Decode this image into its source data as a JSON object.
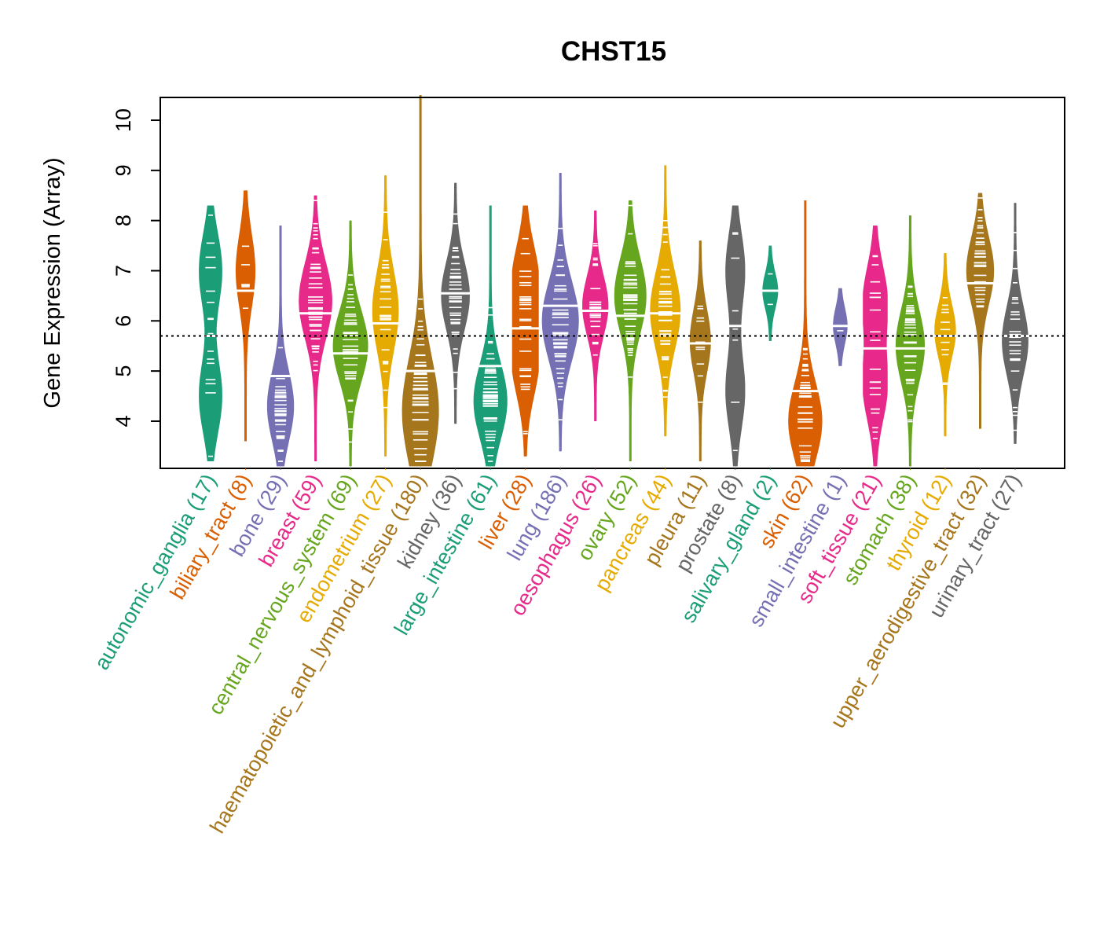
{
  "chart_data": {
    "type": "violin",
    "title": "CHST15",
    "xlabel": "",
    "ylabel": "Gene Expression (Array)",
    "ylim": [
      3.1,
      10.5
    ],
    "yticks": [
      4,
      5,
      6,
      7,
      8,
      9,
      10
    ],
    "reference_line": {
      "value": 5.7,
      "style": "dotted",
      "color": "#000000"
    },
    "grid": false,
    "legend": "none",
    "categories": [
      {
        "name": "autonomic_ganglia",
        "n": 17,
        "label": "autonomic_ganglia (17)",
        "color": "#1B9E77",
        "min": 3.2,
        "max": 8.3,
        "median": 5.7,
        "modes": [
          7.0,
          4.5
        ]
      },
      {
        "name": "biliary_tract",
        "n": 8,
        "label": "biliary_tract (8)",
        "color": "#D95F02",
        "min": 3.6,
        "max": 8.6,
        "median": 6.6,
        "modes": [
          7.0
        ]
      },
      {
        "name": "bone",
        "n": 29,
        "label": "bone (29)",
        "color": "#7570B3",
        "min": 3.1,
        "max": 7.9,
        "median": 4.9,
        "modes": [
          4.3
        ]
      },
      {
        "name": "breast",
        "n": 59,
        "label": "breast (59)",
        "color": "#E7298A",
        "min": 3.2,
        "max": 8.5,
        "median": 6.15,
        "modes": [
          6.4
        ]
      },
      {
        "name": "central_nervous_system",
        "n": 69,
        "label": "central_nervous_system (69)",
        "color": "#66A61E",
        "min": 3.0,
        "max": 8.0,
        "median": 5.35,
        "modes": [
          5.5
        ]
      },
      {
        "name": "endometrium",
        "n": 27,
        "label": "endometrium (27)",
        "color": "#E6AB02",
        "min": 3.3,
        "max": 8.9,
        "median": 5.95,
        "modes": [
          6.2
        ]
      },
      {
        "name": "haematopoietic_and_lymphoid_tissue",
        "n": 180,
        "label": "haematopoietic_and_lymphoid_tissue (180)",
        "color": "#A6761D",
        "min": 3.0,
        "max": 10.5,
        "median": 5.0,
        "modes": [
          4.2
        ]
      },
      {
        "name": "kidney",
        "n": 36,
        "label": "kidney (36)",
        "color": "#666666",
        "min": 3.95,
        "max": 8.75,
        "median": 6.55,
        "modes": [
          6.5
        ]
      },
      {
        "name": "large_intestine",
        "n": 61,
        "label": "large_intestine (61)",
        "color": "#1B9E77",
        "min": 3.0,
        "max": 8.3,
        "median": 5.1,
        "modes": [
          4.4
        ]
      },
      {
        "name": "liver",
        "n": 28,
        "label": "liver (28)",
        "color": "#D95F02",
        "min": 3.3,
        "max": 8.3,
        "median": 5.85,
        "modes": [
          6.8,
          5.2
        ]
      },
      {
        "name": "lung",
        "n": 186,
        "label": "lung (186)",
        "color": "#7570B3",
        "min": 3.4,
        "max": 8.95,
        "median": 6.3,
        "modes": [
          6.0
        ]
      },
      {
        "name": "oesophagus",
        "n": 26,
        "label": "oesophagus (26)",
        "color": "#E7298A",
        "min": 4.0,
        "max": 8.2,
        "median": 6.2,
        "modes": [
          6.3
        ]
      },
      {
        "name": "ovary",
        "n": 52,
        "label": "ovary (52)",
        "color": "#66A61E",
        "min": 3.2,
        "max": 8.4,
        "median": 6.1,
        "modes": [
          6.5
        ]
      },
      {
        "name": "pancreas",
        "n": 44,
        "label": "pancreas (44)",
        "color": "#E6AB02",
        "min": 3.7,
        "max": 9.1,
        "median": 6.15,
        "modes": [
          6.2
        ]
      },
      {
        "name": "pleura",
        "n": 11,
        "label": "pleura (11)",
        "color": "#A6761D",
        "min": 3.2,
        "max": 7.6,
        "median": 5.55,
        "modes": [
          5.6
        ]
      },
      {
        "name": "prostate",
        "n": 8,
        "label": "prostate (8)",
        "color": "#666666",
        "min": 3.1,
        "max": 8.3,
        "median": 5.9,
        "modes": [
          7.0,
          4.6
        ]
      },
      {
        "name": "salivary_gland",
        "n": 2,
        "label": "salivary_gland (2)",
        "color": "#1B9E77",
        "min": 5.6,
        "max": 7.5,
        "median": 6.6,
        "modes": [
          6.6
        ]
      },
      {
        "name": "skin",
        "n": 62,
        "label": "skin (62)",
        "color": "#D95F02",
        "min": 3.0,
        "max": 8.4,
        "median": 4.6,
        "modes": [
          4.0
        ]
      },
      {
        "name": "small_intestine",
        "n": 1,
        "label": "small_intestine (1)",
        "color": "#7570B3",
        "min": 5.1,
        "max": 6.65,
        "median": 5.9,
        "modes": [
          5.9
        ]
      },
      {
        "name": "soft_tissue",
        "n": 21,
        "label": "soft_tissue (21)",
        "color": "#E7298A",
        "min": 3.0,
        "max": 7.9,
        "median": 5.45,
        "modes": [
          6.4,
          4.7
        ]
      },
      {
        "name": "stomach",
        "n": 38,
        "label": "stomach (38)",
        "color": "#66A61E",
        "min": 3.1,
        "max": 8.1,
        "median": 5.45,
        "modes": [
          5.5
        ]
      },
      {
        "name": "thyroid",
        "n": 12,
        "label": "thyroid (12)",
        "color": "#E6AB02",
        "min": 3.7,
        "max": 7.35,
        "median": 5.7,
        "modes": [
          5.8
        ]
      },
      {
        "name": "upper_aerodigestive_tract",
        "n": 32,
        "label": "upper_aerodigestive_tract (32)",
        "color": "#A6761D",
        "min": 3.85,
        "max": 8.55,
        "median": 6.75,
        "modes": [
          7.0
        ]
      },
      {
        "name": "urinary_tract",
        "n": 27,
        "label": "urinary_tract (27)",
        "color": "#666666",
        "min": 3.55,
        "max": 8.35,
        "median": 5.7,
        "modes": [
          5.6
        ]
      }
    ]
  }
}
